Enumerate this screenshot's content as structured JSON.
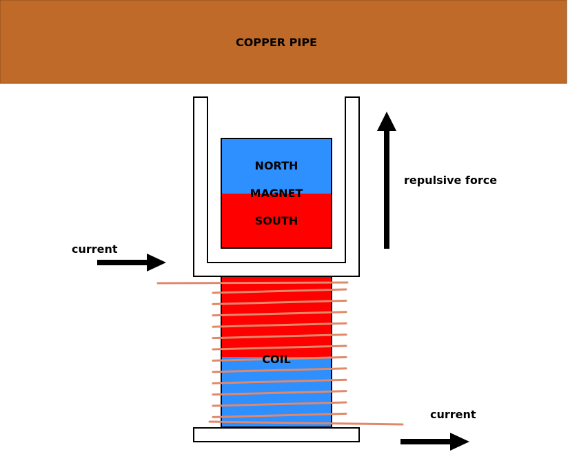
{
  "labels": {
    "pipe": "COPPER PIPE",
    "magnet_north": "NORTH",
    "magnet_center": "MAGNET",
    "magnet_south": "SOUTH",
    "force": "repulsive force",
    "current_in": "current",
    "current_out": "current",
    "coil": "COIL"
  },
  "colors": {
    "copper": "#bf6a29",
    "north": "#2e8fff",
    "south": "#ff0000",
    "winding": "#e0886a",
    "outline": "#000000"
  },
  "coil_turn_count": 12
}
